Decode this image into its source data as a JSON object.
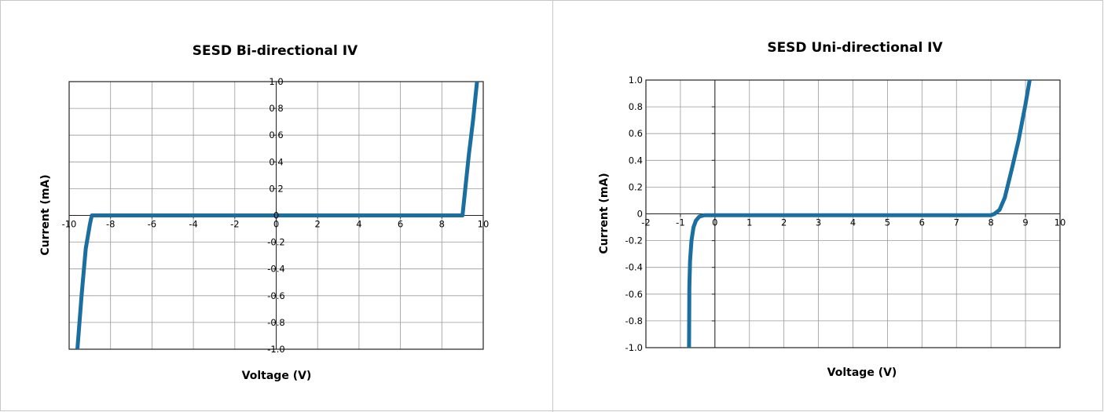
{
  "chart_data": [
    {
      "type": "line",
      "title": "SESD Bi-directional IV",
      "xlabel": "Voltage (V)",
      "ylabel": "Current (mA)",
      "xlim": [
        -10,
        10
      ],
      "ylim": [
        -1.0,
        1.0
      ],
      "grid": true,
      "x_ticks": [
        -10,
        -8,
        -6,
        -4,
        -2,
        0,
        2,
        4,
        6,
        8,
        10
      ],
      "x_tick_labels": [
        "-10",
        "-8",
        "-6",
        "-4",
        "-2",
        "0",
        "2",
        "4",
        "6",
        "8",
        "10"
      ],
      "y_ticks": [
        1.0,
        0.8,
        0.6,
        0.4,
        0.2,
        0,
        -0.2,
        -0.4,
        -0.6,
        -0.8,
        -1.0
      ],
      "y_tick_labels": [
        "1.0",
        "0.8",
        "0.6",
        "0.4",
        "0.2",
        "0",
        "-0.2",
        "-0.4",
        "-0.6",
        "-0.8",
        "-1.0"
      ],
      "color": "#1a6fa0",
      "series": [
        {
          "x": [
            -9.6,
            -9.4,
            -9.2,
            -9.0,
            -8.95,
            -8.9,
            -8.8,
            -5,
            0,
            5,
            8.6,
            8.9,
            9.0,
            9.3,
            9.5,
            9.7
          ],
          "y": [
            -1.0,
            -0.6,
            -0.25,
            -0.07,
            -0.03,
            0,
            0,
            0,
            0,
            0,
            0,
            0,
            0,
            0.45,
            0.7,
            1.0
          ]
        }
      ]
    },
    {
      "type": "line",
      "title": "SESD Uni-directional IV",
      "xlabel": "Voltage (V)",
      "ylabel": "Current (mA)",
      "xlim": [
        -2,
        10
      ],
      "ylim": [
        -1.0,
        1.0
      ],
      "grid": true,
      "x_ticks": [
        -2,
        -1,
        0,
        1,
        2,
        3,
        4,
        5,
        6,
        7,
        8,
        9,
        10
      ],
      "x_tick_labels": [
        "-2",
        "-1",
        "0",
        "1",
        "2",
        "3",
        "4",
        "5",
        "6",
        "7",
        "8",
        "9",
        "10"
      ],
      "y_ticks": [
        1.0,
        0.8,
        0.6,
        0.4,
        0.2,
        0,
        -0.2,
        -0.4,
        -0.6,
        -0.8,
        -1.0
      ],
      "y_tick_labels": [
        "1.0",
        "0.8",
        "0.6",
        "0.4",
        "0.2",
        "0",
        "-0.2",
        "-0.4",
        "-0.6",
        "-0.8",
        "-1.0"
      ],
      "color": "#1a6fa0",
      "series": [
        {
          "x": [
            -0.75,
            -0.74,
            -0.72,
            -0.68,
            -0.62,
            -0.55,
            -0.45,
            -0.3,
            0,
            4,
            8.0,
            8.1,
            8.25,
            8.4,
            8.6,
            8.8,
            9.0,
            9.12
          ],
          "y": [
            -1.0,
            -0.55,
            -0.35,
            -0.2,
            -0.1,
            -0.05,
            -0.02,
            -0.01,
            -0.01,
            -0.01,
            -0.01,
            0,
            0.03,
            0.12,
            0.33,
            0.55,
            0.82,
            1.0
          ]
        }
      ]
    }
  ]
}
